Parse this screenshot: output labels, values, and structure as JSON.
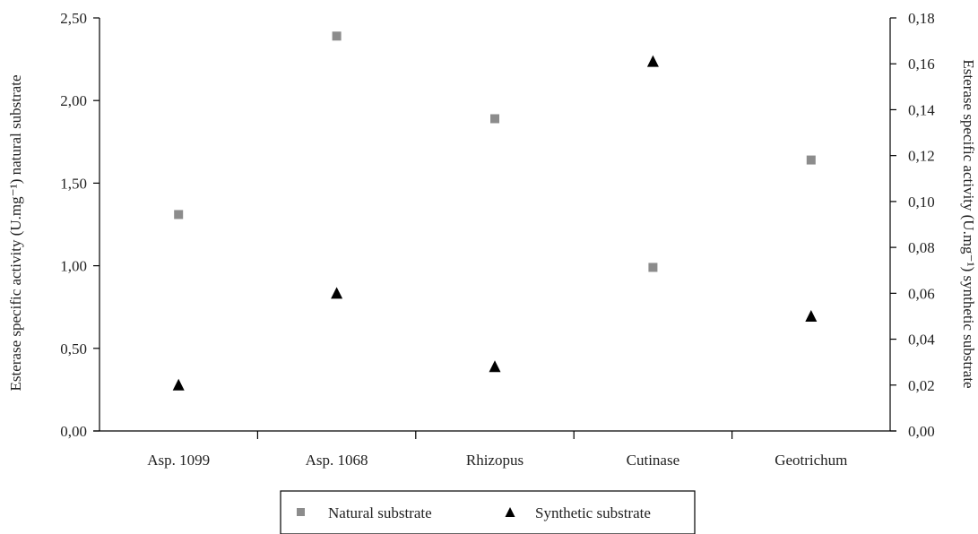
{
  "chart_data": {
    "type": "scatter",
    "categories": [
      "Asp. 1099",
      "Asp. 1068",
      "Rhizopus",
      "Cutinase",
      "Geotrichum"
    ],
    "series": [
      {
        "name": "Natural substrate",
        "axis": "left",
        "marker": "square",
        "color": "#8c8c8c",
        "values": [
          1.31,
          2.39,
          1.89,
          0.99,
          1.64
        ]
      },
      {
        "name": "Synthetic substrate",
        "axis": "right",
        "marker": "triangle",
        "color": "#000000",
        "values": [
          0.02,
          0.06,
          0.028,
          0.161,
          0.05
        ]
      }
    ],
    "y_left": {
      "label": "Esterase specific activity (U.mg⁻¹) natural substrate",
      "ylim": [
        0,
        2.5
      ],
      "ticks": [
        "0,00",
        "0,50",
        "1,00",
        "1,50",
        "2,00",
        "2,50"
      ]
    },
    "y_right": {
      "label": "Esterase specific activity (U.mg⁻¹) synthetic substrate",
      "ylim": [
        0,
        0.18
      ],
      "ticks": [
        "0,00",
        "0,02",
        "0,04",
        "0,06",
        "0,08",
        "0,10",
        "0,12",
        "0,14",
        "0,16",
        "0,18"
      ]
    },
    "grid": false,
    "legend": {
      "position": "bottom",
      "entries": [
        "Natural substrate",
        "Synthetic substrate"
      ]
    }
  }
}
